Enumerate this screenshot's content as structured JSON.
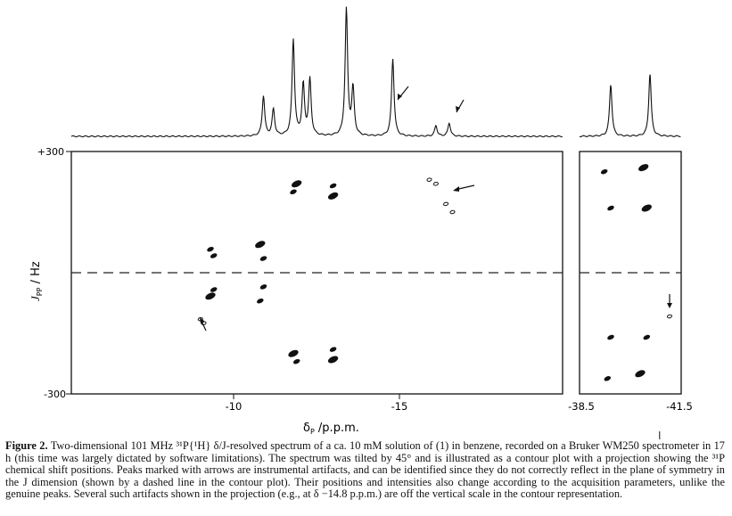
{
  "figure": {
    "y_axis_label": "J",
    "y_axis_label_sub": "PP",
    "y_axis_label_unit": " / Hz",
    "x_axis_label": "δ",
    "x_axis_label_sub": "P",
    "x_axis_label_unit": " /p.p.m.",
    "y_top_tick": "+300",
    "y_bottom_tick": "-300",
    "main_x_ticks": [
      "-10",
      "-15"
    ],
    "inset_x_ticks": [
      "-38.5",
      "-41.5"
    ],
    "cursor_glyph": "I"
  },
  "chart_data": [
    {
      "type": "contour",
      "panel": "main",
      "xlabel": "δP /p.p.m.",
      "ylabel": "JPP / Hz",
      "ylim": [
        -300,
        300
      ],
      "x_ticks": [
        -10,
        -15
      ],
      "symmetry_line_J": 0,
      "peaks": [
        {
          "delta": -11.9,
          "J": 220
        },
        {
          "delta": -11.8,
          "J": 200
        },
        {
          "delta": -13.0,
          "J": 215
        },
        {
          "delta": -13.0,
          "J": 190
        },
        {
          "delta": -9.3,
          "J": 58
        },
        {
          "delta": -9.4,
          "J": 42
        },
        {
          "delta": -10.8,
          "J": 70
        },
        {
          "delta": -10.9,
          "J": 35
        },
        {
          "delta": -9.4,
          "J": -42
        },
        {
          "delta": -9.3,
          "J": -58
        },
        {
          "delta": -10.9,
          "J": -35
        },
        {
          "delta": -10.8,
          "J": -70
        },
        {
          "delta": -11.8,
          "J": -200
        },
        {
          "delta": -11.9,
          "J": -220
        },
        {
          "delta": -13.0,
          "J": -190
        },
        {
          "delta": -13.0,
          "J": -215
        }
      ],
      "artifacts": [
        {
          "delta": -15.9,
          "J": 230
        },
        {
          "delta": -16.1,
          "J": 220
        },
        {
          "delta": -16.4,
          "J": 170
        },
        {
          "delta": -16.6,
          "J": 150
        },
        {
          "delta": -9.0,
          "J": -115
        },
        {
          "delta": -9.1,
          "J": -125
        }
      ]
    },
    {
      "type": "contour",
      "panel": "inset",
      "xlabel": "δP /p.p.m.",
      "ylabel": "JPP / Hz",
      "ylim": [
        -300,
        300
      ],
      "x_ticks": [
        -38.5,
        -41.5
      ],
      "symmetry_line_J": 0,
      "peaks": [
        {
          "delta": -40.4,
          "J": 260
        },
        {
          "delta": -39.2,
          "J": 250
        },
        {
          "delta": -39.4,
          "J": 160
        },
        {
          "delta": -40.5,
          "J": 160
        },
        {
          "delta": -39.4,
          "J": -160
        },
        {
          "delta": -40.5,
          "J": -160
        },
        {
          "delta": -40.3,
          "J": -250
        },
        {
          "delta": -39.3,
          "J": -262
        }
      ],
      "artifacts": [
        {
          "delta": -41.2,
          "J": -108
        }
      ]
    },
    {
      "type": "line",
      "panel": "projection",
      "xlabel": "δP /p.p.m.",
      "note": "31P chemical shift projection; arrows mark instrumental artifacts",
      "peaks": [
        {
          "delta": -10.9,
          "height": 0.3
        },
        {
          "delta": -11.2,
          "height": 0.2
        },
        {
          "delta": -11.8,
          "height": 0.72
        },
        {
          "delta": -12.1,
          "height": 0.38
        },
        {
          "delta": -12.3,
          "height": 0.42
        },
        {
          "delta": -13.4,
          "height": 0.95
        },
        {
          "delta": -13.6,
          "height": 0.35
        },
        {
          "delta": -14.8,
          "height": 0.58
        },
        {
          "delta": -16.1,
          "height": 0.08
        },
        {
          "delta": -16.5,
          "height": 0.1
        },
        {
          "delta": -39.4,
          "height": 0.39
        },
        {
          "delta": -40.6,
          "height": 0.47
        }
      ],
      "arrow_peaks": [
        -14.8,
        -16.5
      ]
    }
  ],
  "caption": {
    "label": "Figure 2.",
    "text": " Two-dimensional 101 MHz ³¹P{¹H} δ/J-resolved spectrum of a ca. 10 mM solution of (1) in benzene, recorded on a Bruker WM250 spectrometer in 17 h (this time was largely dictated by software limitations). The spectrum was tilted by 45° and is illustrated as a contour plot with a projection showing the ³¹P chemical shift positions. Peaks marked with arrows are instrumental artifacts, and can be identified since they do not correctly reflect in the plane of symmetry in the J dimension (shown by a dashed line in the contour plot). Their positions and intensities also change according to the acquisition parameters, unlike the genuine peaks. Several such artifacts shown in the projection (e.g., at δ −14.8 p.p.m.) are off the vertical scale in the contour representation."
  }
}
